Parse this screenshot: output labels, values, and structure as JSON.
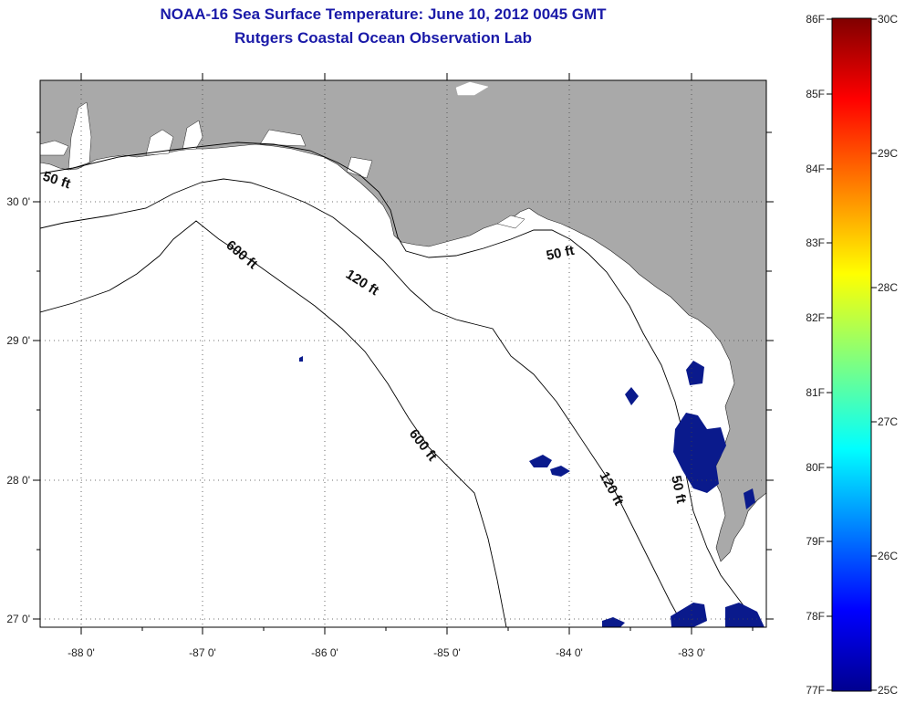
{
  "title": {
    "line1": "NOAA-16 Sea Surface Temperature:  June 10, 2012 0045 GMT",
    "line2": "Rutgers Coastal Ocean Observation Lab"
  },
  "map": {
    "lon_ticks": [
      "-88 0'",
      "-87 0'",
      "-86 0'",
      "-85 0'",
      "-84 0'",
      "-83 0'"
    ],
    "lat_ticks": [
      "30 0'",
      "29 0'",
      "28 0'",
      "27 0'"
    ],
    "contour_labels": {
      "c50_west": "50 ft",
      "c50_east": "50 ft",
      "c50_south": "50 ft",
      "c120_north": "120 ft",
      "c120_south": "120 ft",
      "c600_north": "600 ft",
      "c600_south": "600 ft"
    },
    "colors": {
      "land": "#a9a9a9",
      "water": "#ffffff",
      "sst_patches": "#0a1a8c",
      "contour": "#000000"
    }
  },
  "colorbar": {
    "fahrenheit_labels": [
      "86F",
      "85F",
      "84F",
      "83F",
      "82F",
      "81F",
      "80F",
      "79F",
      "78F",
      "77F"
    ],
    "celsius_labels": [
      "30C",
      "29C",
      "28C",
      "27C",
      "26C",
      "25C"
    ],
    "colors": [
      "#00008f",
      "#0000ff",
      "#00ffff",
      "#ffff00",
      "#ff0000",
      "#800000"
    ]
  }
}
